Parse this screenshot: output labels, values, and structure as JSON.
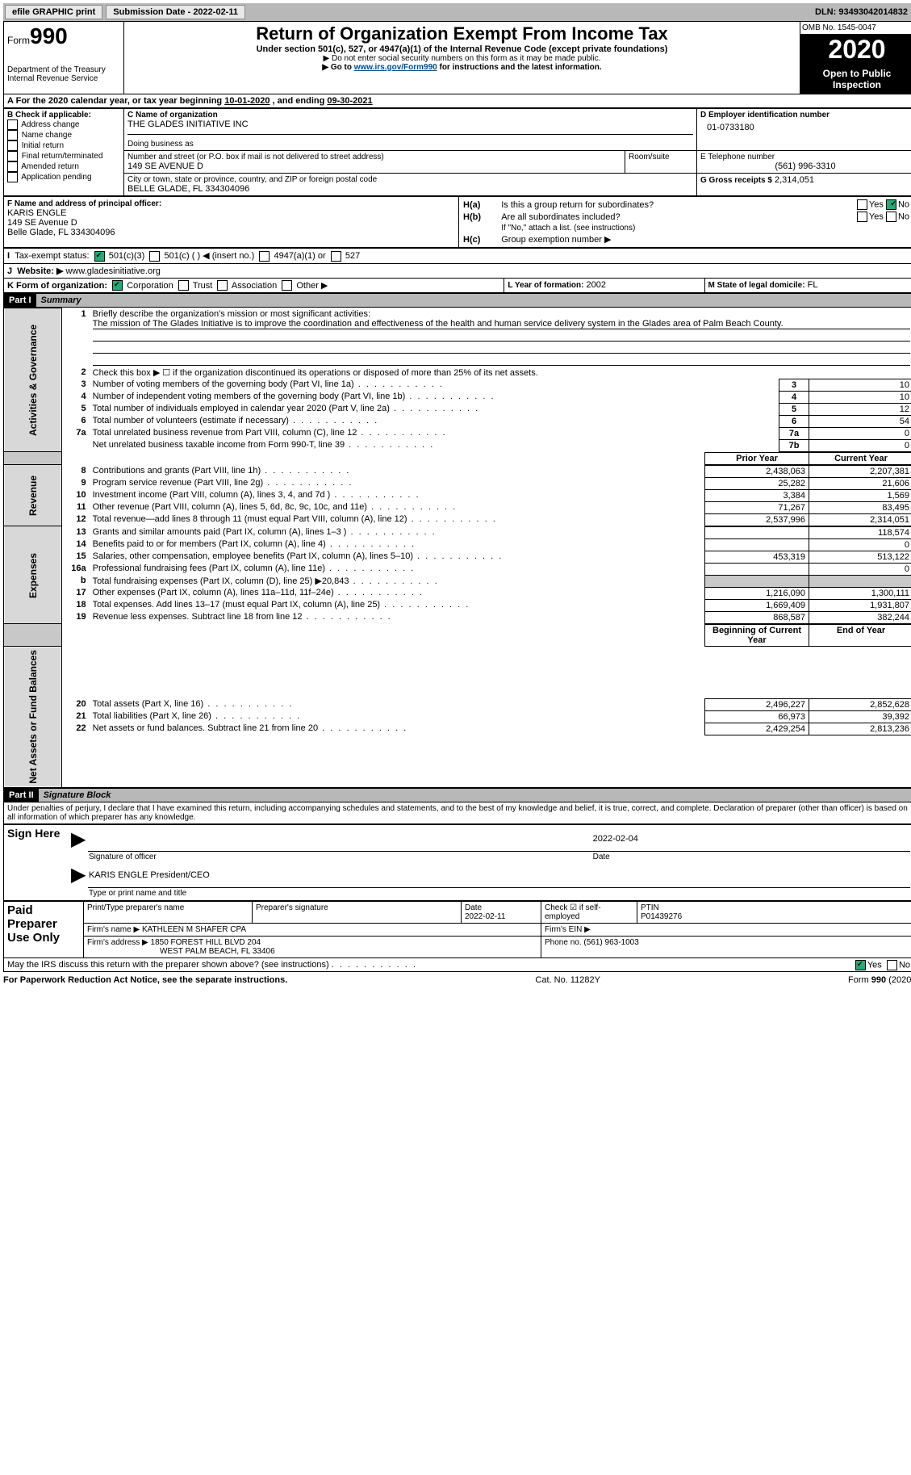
{
  "topbar": {
    "efile": "efile GRAPHIC print",
    "submission_label": "Submission Date - 2022-02-11",
    "dln": "DLN: 93493042014832"
  },
  "header": {
    "form_word": "Form",
    "form_number": "990",
    "dept": "Department of the Treasury",
    "irs": "Internal Revenue Service",
    "title": "Return of Organization Exempt From Income Tax",
    "subtitle": "Under section 501(c), 527, or 4947(a)(1) of the Internal Revenue Code (except private foundations)",
    "note1": "Do not enter social security numbers on this form as it may be made public.",
    "note2_pre": "Go to ",
    "note2_link": "www.irs.gov/Form990",
    "note2_post": " for instructions and the latest information.",
    "omb": "OMB No. 1545-0047",
    "year": "2020",
    "open": "Open to Public Inspection"
  },
  "period": {
    "text_pre": "For the 2020 calendar year, or tax year beginning ",
    "begin": "10-01-2020",
    "mid": " , and ending ",
    "end": "09-30-2021"
  },
  "boxB": {
    "label": "B Check if applicable:",
    "items": [
      "Address change",
      "Name change",
      "Initial return",
      "Final return/terminated",
      "Amended return",
      "Application pending"
    ]
  },
  "boxC": {
    "name_label": "C Name of organization",
    "name": "THE GLADES INITIATIVE INC",
    "dba_label": "Doing business as",
    "addr_label": "Number and street (or P.O. box if mail is not delivered to street address)",
    "room_label": "Room/suite",
    "addr": "149 SE AVENUE D",
    "city_label": "City or town, state or province, country, and ZIP or foreign postal code",
    "city": "BELLE GLADE, FL  334304096"
  },
  "boxD": {
    "label": "D Employer identification number",
    "value": "01-0733180"
  },
  "boxE": {
    "label": "E Telephone number",
    "value": "(561) 996-3310"
  },
  "boxG": {
    "label": "G Gross receipts $",
    "value": "2,314,051"
  },
  "boxF": {
    "label": "F Name and address of principal officer:",
    "name": "KARIS ENGLE",
    "addr1": "149 SE Avenue D",
    "addr2": "Belle Glade, FL  334304096"
  },
  "boxH": {
    "a_label": "Is this a group return for subordinates?",
    "b_label": "Are all subordinates included?",
    "b_note": "If \"No,\" attach a list. (see instructions)",
    "c_label": "Group exemption number ▶",
    "yes": "Yes",
    "no": "No"
  },
  "boxI": {
    "label": "Tax-exempt status:",
    "opts": [
      "501(c)(3)",
      "501(c) (  ) ◀ (insert no.)",
      "4947(a)(1) or",
      "527"
    ]
  },
  "boxJ": {
    "label": "Website: ▶",
    "value": "www.gladesinitiative.org"
  },
  "boxK": {
    "label": "K Form of organization:",
    "opts": [
      "Corporation",
      "Trust",
      "Association",
      "Other ▶"
    ]
  },
  "boxL": {
    "label": "L Year of formation:",
    "value": "2002"
  },
  "boxM": {
    "label": "M State of legal domicile:",
    "value": "FL"
  },
  "partI": {
    "num": "Part I",
    "title": "Summary"
  },
  "summary": {
    "line1_label": "Briefly describe the organization's mission or most significant activities:",
    "line1_text": "The mission of The Glades Initiative is to improve the coordination and effectiveness of the health and human service delivery system in the Glades area of Palm Beach County.",
    "line2": "Check this box ▶ ☐ if the organization discontinued its operations or disposed of more than 25% of its net assets.",
    "rows_gov": [
      {
        "n": "3",
        "t": "Number of voting members of the governing body (Part VI, line 1a)",
        "box": "3",
        "v": "10"
      },
      {
        "n": "4",
        "t": "Number of independent voting members of the governing body (Part VI, line 1b)",
        "box": "4",
        "v": "10"
      },
      {
        "n": "5",
        "t": "Total number of individuals employed in calendar year 2020 (Part V, line 2a)",
        "box": "5",
        "v": "12"
      },
      {
        "n": "6",
        "t": "Total number of volunteers (estimate if necessary)",
        "box": "6",
        "v": "54"
      },
      {
        "n": "7a",
        "t": "Total unrelated business revenue from Part VIII, column (C), line 12",
        "box": "7a",
        "v": "0"
      },
      {
        "n": "",
        "t": "Net unrelated business taxable income from Form 990-T, line 39",
        "box": "7b",
        "v": "0"
      }
    ],
    "col_prior": "Prior Year",
    "col_current": "Current Year",
    "rev": [
      {
        "n": "8",
        "t": "Contributions and grants (Part VIII, line 1h)",
        "p": "2,438,063",
        "c": "2,207,381"
      },
      {
        "n": "9",
        "t": "Program service revenue (Part VIII, line 2g)",
        "p": "25,282",
        "c": "21,606"
      },
      {
        "n": "10",
        "t": "Investment income (Part VIII, column (A), lines 3, 4, and 7d )",
        "p": "3,384",
        "c": "1,569"
      },
      {
        "n": "11",
        "t": "Other revenue (Part VIII, column (A), lines 5, 6d, 8c, 9c, 10c, and 11e)",
        "p": "71,267",
        "c": "83,495"
      },
      {
        "n": "12",
        "t": "Total revenue—add lines 8 through 11 (must equal Part VIII, column (A), line 12)",
        "p": "2,537,996",
        "c": "2,314,051"
      }
    ],
    "exp": [
      {
        "n": "13",
        "t": "Grants and similar amounts paid (Part IX, column (A), lines 1–3 )",
        "p": "",
        "c": "118,574"
      },
      {
        "n": "14",
        "t": "Benefits paid to or for members (Part IX, column (A), line 4)",
        "p": "",
        "c": "0"
      },
      {
        "n": "15",
        "t": "Salaries, other compensation, employee benefits (Part IX, column (A), lines 5–10)",
        "p": "453,319",
        "c": "513,122"
      },
      {
        "n": "16a",
        "t": "Professional fundraising fees (Part IX, column (A), line 11e)",
        "p": "",
        "c": "0"
      },
      {
        "n": "b",
        "t": "Total fundraising expenses (Part IX, column (D), line 25) ▶20,843",
        "p": "grey",
        "c": "grey"
      },
      {
        "n": "17",
        "t": "Other expenses (Part IX, column (A), lines 11a–11d, 11f–24e)",
        "p": "1,216,090",
        "c": "1,300,111"
      },
      {
        "n": "18",
        "t": "Total expenses. Add lines 13–17 (must equal Part IX, column (A), line 25)",
        "p": "1,669,409",
        "c": "1,931,807"
      },
      {
        "n": "19",
        "t": "Revenue less expenses. Subtract line 18 from line 12",
        "p": "868,587",
        "c": "382,244"
      }
    ],
    "col_begin": "Beginning of Current Year",
    "col_end": "End of Year",
    "net": [
      {
        "n": "20",
        "t": "Total assets (Part X, line 16)",
        "p": "2,496,227",
        "c": "2,852,628"
      },
      {
        "n": "21",
        "t": "Total liabilities (Part X, line 26)",
        "p": "66,973",
        "c": "39,392"
      },
      {
        "n": "22",
        "t": "Net assets or fund balances. Subtract line 21 from line 20",
        "p": "2,429,254",
        "c": "2,813,236"
      }
    ]
  },
  "partII": {
    "num": "Part II",
    "title": "Signature Block"
  },
  "sig": {
    "declaration": "Under penalties of perjury, I declare that I have examined this return, including accompanying schedules and statements, and to the best of my knowledge and belief, it is true, correct, and complete. Declaration of preparer (other than officer) is based on all information of which preparer has any knowledge.",
    "sign_here": "Sign Here",
    "sig_officer": "Signature of officer",
    "date": "Date",
    "sig_date": "2022-02-04",
    "officer_name": "KARIS ENGLE President/CEO",
    "type_name": "Type or print name and title",
    "paid": "Paid Preparer Use Only",
    "prep_name_label": "Print/Type preparer's name",
    "prep_sig_label": "Preparer's signature",
    "prep_date_label": "Date",
    "prep_date": "2022-02-11",
    "check_label": "Check ☑ if self-employed",
    "ptin_label": "PTIN",
    "ptin": "P01439276",
    "firm_name_label": "Firm's name ▶",
    "firm_name": "KATHLEEN M SHAFER CPA",
    "firm_ein_label": "Firm's EIN ▶",
    "firm_addr_label": "Firm's address ▶",
    "firm_addr": "1850 FOREST HILL BLVD 204",
    "firm_city": "WEST PALM BEACH, FL  33406",
    "phone_label": "Phone no.",
    "phone": "(561) 963-1003",
    "discuss": "May the IRS discuss this return with the preparer shown above? (see instructions)"
  },
  "footer": {
    "pra": "For Paperwork Reduction Act Notice, see the separate instructions.",
    "cat": "Cat. No. 11282Y",
    "form": "Form 990 (2020)"
  },
  "sections": {
    "gov": "Activities & Governance",
    "rev": "Revenue",
    "exp": "Expenses",
    "net": "Net Assets or Fund Balances"
  }
}
